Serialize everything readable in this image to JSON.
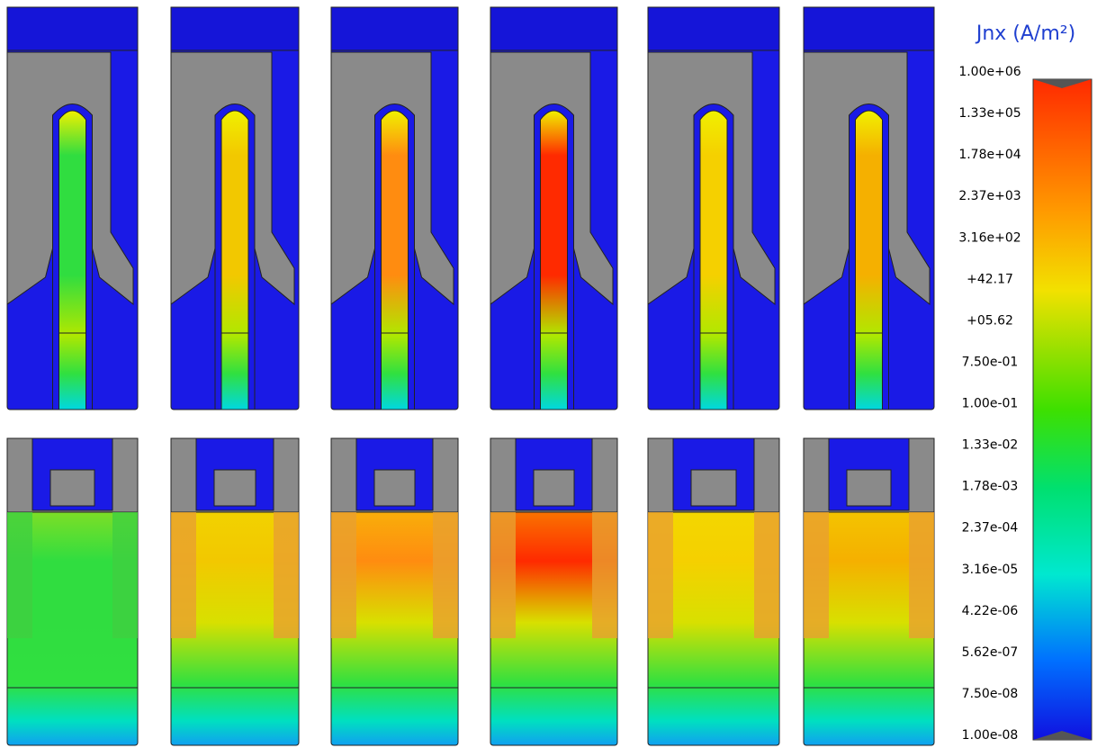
{
  "colorbar": {
    "title": "Jnx (A/m²)",
    "tick_labels": [
      "1.00e+06",
      "1.33e+05",
      "1.78e+04",
      "2.37e+03",
      "3.16e+02",
      "+42.17",
      "+05.62",
      "7.50e-01",
      "1.00e-01",
      "1.33e-02",
      "1.78e-03",
      "2.37e-04",
      "3.16e-05",
      "4.22e-06",
      "5.62e-07",
      "7.50e-08",
      "1.00e-08"
    ]
  }
}
